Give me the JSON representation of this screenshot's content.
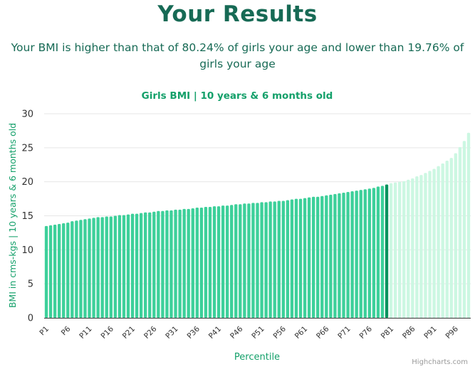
{
  "page": {
    "heading": "Your Results",
    "summary": "Your BMI is higher than that of 80.24% of girls your age and lower than 19.76% of girls your age",
    "credits": "Highcharts.com"
  },
  "colors": {
    "heading": "#176a55",
    "chart_title": "#14a06a",
    "bar": "#3dd09a",
    "highlight_bar": "#08935e",
    "upper_bar": "#ccf7e2",
    "grid": "#e6e6e6",
    "axis_line": "#333333"
  },
  "chart_data": {
    "type": "bar",
    "title": "Girls BMI | 10 years & 6 months old",
    "xlabel": "Percentile",
    "ylabel": "BMI in cms-kgs | 10 years & 6 months old",
    "ylim": [
      0,
      30
    ],
    "yticks": [
      0,
      5,
      10,
      15,
      20,
      25,
      30
    ],
    "grid": true,
    "legend": "none",
    "highlight_percentile": "P80",
    "categories": [
      "P1",
      "P2",
      "P3",
      "P4",
      "P5",
      "P6",
      "P7",
      "P8",
      "P9",
      "P10",
      "P11",
      "P12",
      "P13",
      "P14",
      "P15",
      "P16",
      "P17",
      "P18",
      "P19",
      "P20",
      "P21",
      "P22",
      "P23",
      "P24",
      "P25",
      "P26",
      "P27",
      "P28",
      "P29",
      "P30",
      "P31",
      "P32",
      "P33",
      "P34",
      "P35",
      "P36",
      "P37",
      "P38",
      "P39",
      "P40",
      "P41",
      "P42",
      "P43",
      "P44",
      "P45",
      "P46",
      "P47",
      "P48",
      "P49",
      "P50",
      "P51",
      "P52",
      "P53",
      "P54",
      "P55",
      "P56",
      "P57",
      "P58",
      "P59",
      "P60",
      "P61",
      "P62",
      "P63",
      "P64",
      "P65",
      "P66",
      "P67",
      "P68",
      "P69",
      "P70",
      "P71",
      "P72",
      "P73",
      "P74",
      "P75",
      "P76",
      "P77",
      "P78",
      "P79",
      "P80",
      "P81",
      "P82",
      "P83",
      "P84",
      "P85",
      "P86",
      "P87",
      "P88",
      "P89",
      "P90",
      "P91",
      "P92",
      "P93",
      "P94",
      "P95",
      "P96",
      "P97",
      "P98",
      "P99"
    ],
    "tick_labels": [
      "P1",
      "P6",
      "P11",
      "P16",
      "P21",
      "P26",
      "P31",
      "P36",
      "P41",
      "P46",
      "P51",
      "P56",
      "P61",
      "P66",
      "P71",
      "P76",
      "P81",
      "P86",
      "P91",
      "P96"
    ],
    "values": [
      13.5,
      13.6,
      13.7,
      13.8,
      13.9,
      14.0,
      14.2,
      14.3,
      14.4,
      14.5,
      14.6,
      14.7,
      14.8,
      14.8,
      14.9,
      14.9,
      15.0,
      15.1,
      15.1,
      15.2,
      15.3,
      15.3,
      15.4,
      15.5,
      15.5,
      15.6,
      15.7,
      15.7,
      15.8,
      15.8,
      15.9,
      15.9,
      16.0,
      16.0,
      16.1,
      16.2,
      16.2,
      16.3,
      16.3,
      16.4,
      16.4,
      16.5,
      16.5,
      16.6,
      16.7,
      16.7,
      16.8,
      16.8,
      16.9,
      16.9,
      17.0,
      17.0,
      17.1,
      17.1,
      17.2,
      17.2,
      17.3,
      17.4,
      17.5,
      17.5,
      17.6,
      17.7,
      17.8,
      17.8,
      17.9,
      18.0,
      18.1,
      18.2,
      18.3,
      18.4,
      18.5,
      18.6,
      18.7,
      18.8,
      18.9,
      19.0,
      19.1,
      19.3,
      19.4,
      19.6,
      19.8,
      19.9,
      20.0,
      20.1,
      20.3,
      20.5,
      20.8,
      21.0,
      21.3,
      21.6,
      21.9,
      22.3,
      22.7,
      23.1,
      23.5,
      24.2,
      25.1,
      26.0,
      27.2
    ]
  }
}
